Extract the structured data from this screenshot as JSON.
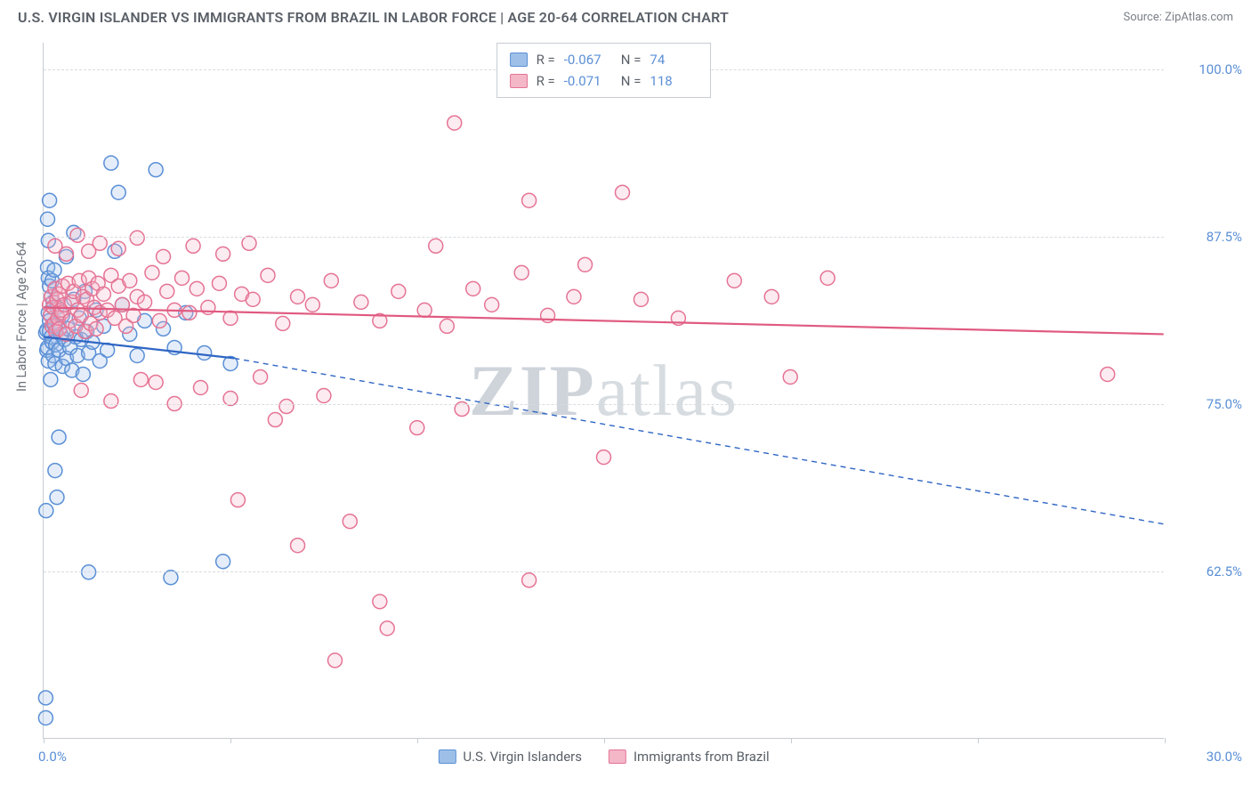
{
  "header": {
    "title": "U.S. VIRGIN ISLANDER VS IMMIGRANTS FROM BRAZIL IN LABOR FORCE | AGE 20-64 CORRELATION CHART",
    "source": "Source: ZipAtlas.com"
  },
  "watermark": {
    "zip": "ZIP",
    "atlas": "atlas"
  },
  "chart": {
    "type": "scatter",
    "background_color": "#ffffff",
    "grid_color": "#d7dbe0",
    "axis_color": "#c7ccd2",
    "tick_label_color": "#5a8fd6",
    "axis_label_color": "#6a7078",
    "ylabel": "In Labor Force | Age 20-64",
    "xlim": [
      0,
      30
    ],
    "ylim": [
      50,
      102
    ],
    "xticks": [
      0,
      5,
      10,
      15,
      20,
      25,
      30
    ],
    "xtick_labels": {
      "0": "0.0%",
      "30": "30.0%"
    },
    "yticks": [
      62.5,
      75.0,
      87.5,
      100.0
    ],
    "ytick_labels": [
      "62.5%",
      "75.0%",
      "87.5%",
      "100.0%"
    ],
    "marker_radius": 8,
    "marker_stroke_width": 1.5,
    "marker_fill_opacity": 0.28,
    "line_width": 2.2,
    "series": [
      {
        "id": "usvi",
        "label": "U.S. Virgin Islanders",
        "color_stroke": "#5a8fd6",
        "color_fill": "#9ec0e8",
        "line_color": "#2f66c4",
        "R": "-0.067",
        "N": "74",
        "trend": {
          "x1": 0,
          "y1": 80.0,
          "x2": 5.1,
          "y2": 78.4,
          "extrap_x2": 30,
          "extrap_y2": 66.0
        },
        "points": [
          [
            0.05,
            80.3
          ],
          [
            0.08,
            79.0
          ],
          [
            0.08,
            80.5
          ],
          [
            0.1,
            79.2
          ],
          [
            0.1,
            88.8
          ],
          [
            0.1,
            85.2
          ],
          [
            0.12,
            84.4
          ],
          [
            0.12,
            81.8
          ],
          [
            0.12,
            78.2
          ],
          [
            0.15,
            83.8
          ],
          [
            0.15,
            81.2
          ],
          [
            0.15,
            80.4
          ],
          [
            0.18,
            76.8
          ],
          [
            0.2,
            83.0
          ],
          [
            0.2,
            80.0
          ],
          [
            0.22,
            84.2
          ],
          [
            0.22,
            79.6
          ],
          [
            0.25,
            82.6
          ],
          [
            0.25,
            78.6
          ],
          [
            0.28,
            85.0
          ],
          [
            0.3,
            80.8
          ],
          [
            0.3,
            78.0
          ],
          [
            0.32,
            79.4
          ],
          [
            0.35,
            82.2
          ],
          [
            0.4,
            81.0
          ],
          [
            0.4,
            79.0
          ],
          [
            0.45,
            80.2
          ],
          [
            0.5,
            77.8
          ],
          [
            0.5,
            81.6
          ],
          [
            0.55,
            79.8
          ],
          [
            0.6,
            78.4
          ],
          [
            0.65,
            80.6
          ],
          [
            0.7,
            79.2
          ],
          [
            0.75,
            77.5
          ],
          [
            0.8,
            82.8
          ],
          [
            0.85,
            80.0
          ],
          [
            0.9,
            78.6
          ],
          [
            0.95,
            81.4
          ],
          [
            1.0,
            79.8
          ],
          [
            1.05,
            77.2
          ],
          [
            1.1,
            83.4
          ],
          [
            1.15,
            80.4
          ],
          [
            1.2,
            78.8
          ],
          [
            1.3,
            79.6
          ],
          [
            1.4,
            82.0
          ],
          [
            1.5,
            78.2
          ],
          [
            1.6,
            80.8
          ],
          [
            1.7,
            79.0
          ],
          [
            1.8,
            93.0
          ],
          [
            1.9,
            86.4
          ],
          [
            2.0,
            90.8
          ],
          [
            2.1,
            82.4
          ],
          [
            2.3,
            80.2
          ],
          [
            2.5,
            78.6
          ],
          [
            2.7,
            81.2
          ],
          [
            3.0,
            92.5
          ],
          [
            3.2,
            80.6
          ],
          [
            3.5,
            79.2
          ],
          [
            3.8,
            81.8
          ],
          [
            4.3,
            78.8
          ],
          [
            5.0,
            78.0
          ],
          [
            0.3,
            70.0
          ],
          [
            0.35,
            68.0
          ],
          [
            0.4,
            72.5
          ],
          [
            0.12,
            87.2
          ],
          [
            0.15,
            90.2
          ],
          [
            0.6,
            86.0
          ],
          [
            0.8,
            87.8
          ],
          [
            0.06,
            67.0
          ],
          [
            0.05,
            51.5
          ],
          [
            0.05,
            53.0
          ],
          [
            1.2,
            62.4
          ],
          [
            3.4,
            62.0
          ],
          [
            4.8,
            63.2
          ]
        ]
      },
      {
        "id": "brazil",
        "label": "Immigrants from Brazil",
        "color_stroke": "#e57394",
        "color_fill": "#f3b7c8",
        "line_color": "#e05a80",
        "R": "-0.071",
        "N": "118",
        "trend": {
          "x1": 0,
          "y1": 82.2,
          "x2": 30,
          "y2": 80.2
        },
        "points": [
          [
            0.15,
            82.4
          ],
          [
            0.18,
            81.6
          ],
          [
            0.2,
            83.0
          ],
          [
            0.22,
            80.8
          ],
          [
            0.25,
            82.2
          ],
          [
            0.28,
            81.0
          ],
          [
            0.3,
            83.6
          ],
          [
            0.32,
            80.4
          ],
          [
            0.35,
            82.8
          ],
          [
            0.38,
            81.4
          ],
          [
            0.4,
            83.2
          ],
          [
            0.42,
            80.6
          ],
          [
            0.45,
            82.0
          ],
          [
            0.48,
            81.8
          ],
          [
            0.5,
            83.8
          ],
          [
            0.55,
            82.4
          ],
          [
            0.6,
            80.2
          ],
          [
            0.65,
            84.0
          ],
          [
            0.7,
            81.2
          ],
          [
            0.75,
            82.6
          ],
          [
            0.8,
            83.4
          ],
          [
            0.85,
            80.8
          ],
          [
            0.9,
            82.0
          ],
          [
            0.95,
            84.2
          ],
          [
            1.0,
            81.6
          ],
          [
            1.05,
            83.0
          ],
          [
            1.1,
            80.4
          ],
          [
            1.15,
            82.8
          ],
          [
            1.2,
            84.4
          ],
          [
            1.25,
            81.0
          ],
          [
            1.3,
            83.6
          ],
          [
            1.35,
            82.2
          ],
          [
            1.4,
            80.6
          ],
          [
            1.45,
            84.0
          ],
          [
            1.5,
            81.8
          ],
          [
            1.6,
            83.2
          ],
          [
            1.7,
            82.0
          ],
          [
            1.8,
            84.6
          ],
          [
            1.9,
            81.4
          ],
          [
            2.0,
            83.8
          ],
          [
            2.1,
            82.4
          ],
          [
            2.2,
            80.8
          ],
          [
            2.3,
            84.2
          ],
          [
            2.4,
            81.6
          ],
          [
            2.5,
            83.0
          ],
          [
            2.7,
            82.6
          ],
          [
            2.9,
            84.8
          ],
          [
            3.1,
            81.2
          ],
          [
            3.3,
            83.4
          ],
          [
            3.5,
            82.0
          ],
          [
            3.7,
            84.4
          ],
          [
            3.9,
            81.8
          ],
          [
            4.1,
            83.6
          ],
          [
            4.4,
            82.2
          ],
          [
            4.7,
            84.0
          ],
          [
            5.0,
            81.4
          ],
          [
            5.3,
            83.2
          ],
          [
            5.6,
            82.8
          ],
          [
            6.0,
            84.6
          ],
          [
            6.4,
            81.0
          ],
          [
            6.8,
            83.0
          ],
          [
            7.2,
            82.4
          ],
          [
            7.7,
            84.2
          ],
          [
            2.0,
            86.6
          ],
          [
            2.5,
            87.4
          ],
          [
            3.2,
            86.0
          ],
          [
            4.0,
            86.8
          ],
          [
            4.8,
            86.2
          ],
          [
            5.5,
            87.0
          ],
          [
            1.2,
            86.4
          ],
          [
            0.9,
            87.6
          ],
          [
            1.5,
            87.0
          ],
          [
            0.6,
            86.2
          ],
          [
            0.3,
            86.8
          ],
          [
            3.0,
            76.6
          ],
          [
            3.5,
            75.0
          ],
          [
            4.2,
            76.2
          ],
          [
            5.0,
            75.4
          ],
          [
            5.8,
            77.0
          ],
          [
            6.5,
            74.8
          ],
          [
            7.5,
            75.6
          ],
          [
            1.0,
            76.0
          ],
          [
            1.8,
            75.2
          ],
          [
            2.6,
            76.8
          ],
          [
            8.5,
            82.6
          ],
          [
            9.0,
            81.2
          ],
          [
            9.5,
            83.4
          ],
          [
            10.2,
            82.0
          ],
          [
            10.8,
            80.8
          ],
          [
            11.5,
            83.6
          ],
          [
            12.0,
            82.4
          ],
          [
            12.8,
            84.8
          ],
          [
            13.5,
            81.6
          ],
          [
            14.2,
            83.0
          ],
          [
            11.0,
            96.0
          ],
          [
            13.0,
            90.2
          ],
          [
            15.5,
            90.8
          ],
          [
            10.5,
            86.8
          ],
          [
            14.5,
            85.4
          ],
          [
            16.0,
            82.8
          ],
          [
            17.0,
            81.4
          ],
          [
            18.5,
            84.2
          ],
          [
            19.5,
            83.0
          ],
          [
            21.0,
            84.4
          ],
          [
            15.0,
            71.0
          ],
          [
            13.0,
            61.8
          ],
          [
            8.2,
            66.2
          ],
          [
            9.0,
            60.2
          ],
          [
            9.2,
            58.2
          ],
          [
            6.8,
            64.4
          ],
          [
            7.8,
            55.8
          ],
          [
            5.2,
            67.8
          ],
          [
            6.2,
            73.8
          ],
          [
            10.0,
            73.2
          ],
          [
            11.2,
            74.6
          ],
          [
            20.0,
            77.0
          ],
          [
            28.5,
            77.2
          ]
        ]
      }
    ],
    "legend_top": {
      "r_label": "R =",
      "n_label": "N ="
    },
    "legend_bottom": {
      "items": [
        "U.S. Virgin Islanders",
        "Immigrants from Brazil"
      ]
    }
  }
}
